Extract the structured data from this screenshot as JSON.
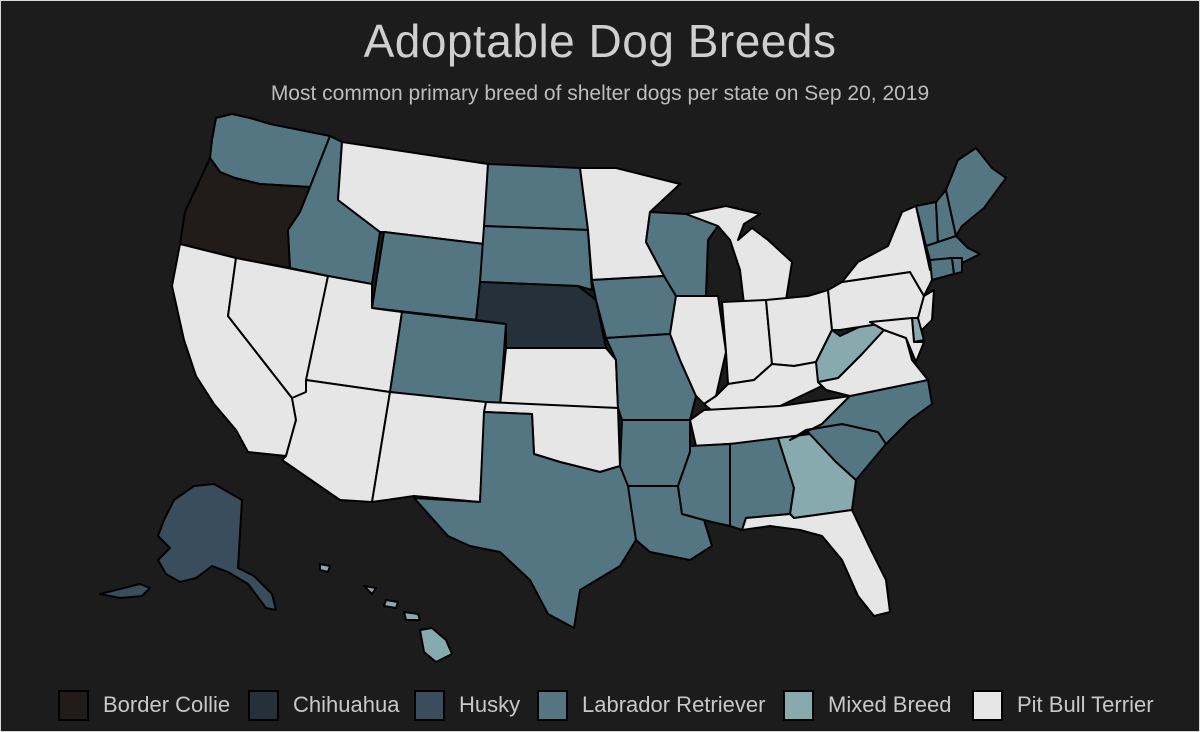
{
  "title": "Adoptable Dog Breeds",
  "subtitle": "Most common primary breed of shelter dogs per state on Sep 20, 2019",
  "legend": [
    {
      "label": "Border Collie",
      "color": "#211c19"
    },
    {
      "label": "Chihuahua",
      "color": "#24303a"
    },
    {
      "label": "Husky",
      "color": "#3a4d5c"
    },
    {
      "label": "Labrador Retriever",
      "color": "#547683"
    },
    {
      "label": "Mixed Breed",
      "color": "#86aaad"
    },
    {
      "label": "Pit Bull Terrier",
      "color": "#e6e6e6"
    }
  ],
  "states": {
    "WA": "Labrador Retriever",
    "OR": "Border Collie",
    "CA": "Pit Bull Terrier",
    "ID": "Labrador Retriever",
    "NV": "Pit Bull Terrier",
    "MT": "Pit Bull Terrier",
    "WY": "Labrador Retriever",
    "UT": "Pit Bull Terrier",
    "AZ": "Pit Bull Terrier",
    "CO": "Labrador Retriever",
    "NM": "Pit Bull Terrier",
    "ND": "Labrador Retriever",
    "SD": "Labrador Retriever",
    "NE": "Chihuahua",
    "KS": "Pit Bull Terrier",
    "OK": "Pit Bull Terrier",
    "TX": "Labrador Retriever",
    "MN": "Pit Bull Terrier",
    "IA": "Labrador Retriever",
    "MO": "Labrador Retriever",
    "AR": "Labrador Retriever",
    "LA": "Labrador Retriever",
    "WI": "Labrador Retriever",
    "IL": "Pit Bull Terrier",
    "MI": "Pit Bull Terrier",
    "IN": "Pit Bull Terrier",
    "OH": "Pit Bull Terrier",
    "KY": "Pit Bull Terrier",
    "TN": "Pit Bull Terrier",
    "MS": "Labrador Retriever",
    "AL": "Labrador Retriever",
    "GA": "Mixed Breed",
    "FL": "Pit Bull Terrier",
    "SC": "Labrador Retriever",
    "NC": "Labrador Retriever",
    "VA": "Pit Bull Terrier",
    "WV": "Mixed Breed",
    "PA": "Pit Bull Terrier",
    "NY": "Pit Bull Terrier",
    "NJ": "Pit Bull Terrier",
    "DE": "Mixed Breed",
    "MD": "Pit Bull Terrier",
    "VT": "Labrador Retriever",
    "NH": "Labrador Retriever",
    "ME": "Labrador Retriever",
    "MA": "Labrador Retriever",
    "CT": "Labrador Retriever",
    "RI": "Labrador Retriever",
    "AK": "Husky",
    "HI": "Mixed Breed"
  }
}
